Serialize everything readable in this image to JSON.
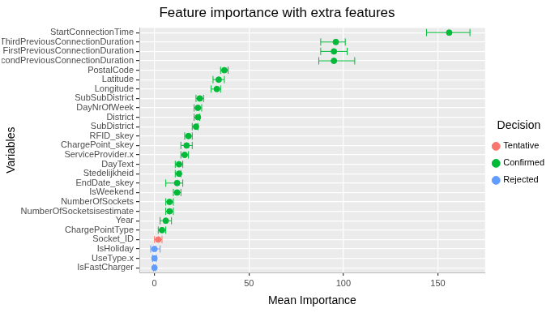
{
  "chart_data": {
    "type": "scatter",
    "title": "Feature importance with extra features",
    "x_label": "Mean Importance",
    "y_label": "Variables",
    "legend_title": "Decision",
    "orientation": "horizontal",
    "legend": "right",
    "grid": true,
    "xlim": [
      -8,
      175
    ],
    "xticks": [
      0,
      50,
      100,
      150
    ],
    "categories": [
      "StartConnectionTime",
      "ThirdPreviousConnectionDuration",
      "FirstPreviousConnectionDuration",
      "SecondPreviousConnectionDuration",
      "PostalCode",
      "Latitude",
      "Longitude",
      "SubSubDistrict",
      "DayNrOfWeek",
      "District",
      "SubDistrict",
      "RFID_skey",
      "ChargePoint_skey",
      "ServiceProvider.x",
      "DayText",
      "Stedelijkheid",
      "EndDate_skey",
      "IsWeekend",
      "NumberOfSockets",
      "NumberOfSocketsisestimate",
      "Year",
      "ChargePointType",
      "Socket_ID",
      "IsHoliday",
      "UseType.x",
      "IsFastCharger"
    ],
    "series": [
      {
        "name": "Tentative",
        "color": "#F8766D",
        "values": [
          null,
          null,
          null,
          null,
          null,
          null,
          null,
          null,
          null,
          null,
          null,
          null,
          null,
          null,
          null,
          null,
          null,
          null,
          null,
          null,
          null,
          null,
          2,
          null,
          null,
          null
        ],
        "error_low": [
          null,
          null,
          null,
          null,
          null,
          null,
          null,
          null,
          null,
          null,
          null,
          null,
          null,
          null,
          null,
          null,
          null,
          null,
          null,
          null,
          null,
          null,
          0,
          null,
          null,
          null
        ],
        "error_high": [
          null,
          null,
          null,
          null,
          null,
          null,
          null,
          null,
          null,
          null,
          null,
          null,
          null,
          null,
          null,
          null,
          null,
          null,
          null,
          null,
          null,
          null,
          4,
          null,
          null,
          null
        ]
      },
      {
        "name": "Confirmed",
        "color": "#00BA38",
        "values": [
          156,
          96,
          95,
          95,
          37,
          34,
          33,
          24,
          23,
          23,
          22,
          18,
          17,
          16,
          13,
          13,
          12,
          12,
          8,
          8,
          6,
          4,
          null,
          null,
          null,
          null
        ],
        "error_low": [
          144,
          88,
          88,
          87,
          35,
          31,
          30,
          22,
          21,
          21,
          20,
          16,
          14,
          14,
          11,
          11,
          6,
          10,
          6,
          6,
          3,
          2,
          null,
          null,
          null,
          null
        ],
        "error_high": [
          167,
          101,
          102,
          106,
          39,
          37,
          35,
          26,
          25,
          24,
          23,
          20,
          20,
          18,
          15,
          14,
          15,
          14,
          10,
          10,
          9,
          6,
          null,
          null,
          null,
          null
        ]
      },
      {
        "name": "Rejected",
        "color": "#619CFF",
        "values": [
          null,
          null,
          null,
          null,
          null,
          null,
          null,
          null,
          null,
          null,
          null,
          null,
          null,
          null,
          null,
          null,
          null,
          null,
          null,
          null,
          null,
          null,
          null,
          0,
          0,
          0
        ],
        "error_low": [
          null,
          null,
          null,
          null,
          null,
          null,
          null,
          null,
          null,
          null,
          null,
          null,
          null,
          null,
          null,
          null,
          null,
          null,
          null,
          null,
          null,
          null,
          null,
          -2,
          -1,
          -0.5
        ],
        "error_high": [
          null,
          null,
          null,
          null,
          null,
          null,
          null,
          null,
          null,
          null,
          null,
          null,
          null,
          null,
          null,
          null,
          null,
          null,
          null,
          null,
          null,
          null,
          null,
          3,
          1,
          0.5
        ]
      }
    ]
  }
}
